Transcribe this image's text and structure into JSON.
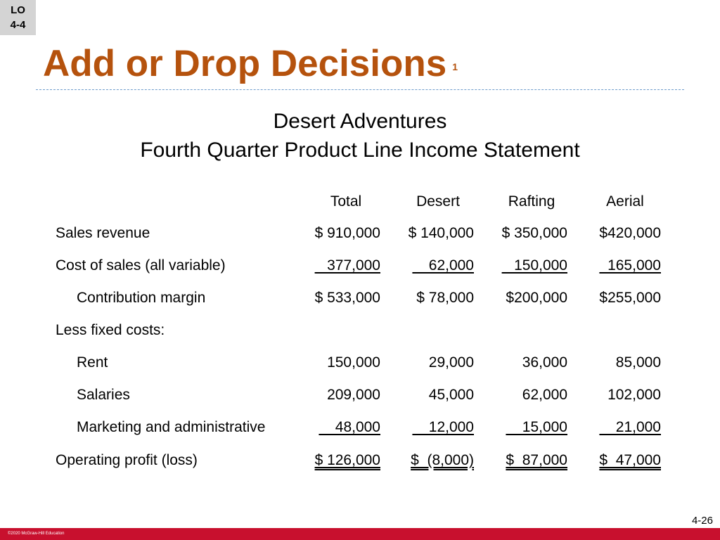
{
  "badge": {
    "line1": "LO",
    "line2": "4-4"
  },
  "title": {
    "text": "Add or Drop Decisions",
    "superscript": "1"
  },
  "statement": {
    "company": "Desert Adventures",
    "name": "Fourth Quarter Product Line Income Statement"
  },
  "columns": [
    "Total",
    "Desert",
    "Rafting",
    "Aerial"
  ],
  "rows": [
    {
      "label": "Sales revenue",
      "values": [
        "$ 910,000",
        "$ 140,000",
        "$ 350,000",
        "$420,000"
      ]
    },
    {
      "label": "Cost of sales (all variable)",
      "values": [
        "   377,000",
        "    62,000",
        "   150,000",
        "  165,000"
      ]
    },
    {
      "label": "Contribution margin",
      "values": [
        "$ 533,000",
        "$ 78,000",
        "$200,000",
        "$255,000"
      ]
    },
    {
      "label": "Less fixed costs:",
      "values": [
        "",
        "",
        "",
        ""
      ]
    },
    {
      "label": "Rent",
      "values": [
        "150,000",
        "29,000",
        "36,000",
        "85,000"
      ]
    },
    {
      "label": "Salaries",
      "values": [
        "209,000",
        "45,000",
        "62,000",
        "102,000"
      ]
    },
    {
      "label": "Marketing and administrative",
      "values": [
        "    48,000",
        "    12,000",
        "    15,000",
        "    21,000"
      ]
    },
    {
      "label": "Operating profit (loss)",
      "values": [
        "$ 126,000",
        "$  (8,000)",
        "$  87,000",
        "$  47,000"
      ]
    }
  ],
  "footer": {
    "copyright": "©2020 McGraw-Hill Education",
    "page": "4-26"
  },
  "colors": {
    "title": "#b5520d",
    "footer_bar": "#c8102e",
    "badge_bg": "#d4d4d4",
    "rule": "#6e9ccc"
  }
}
